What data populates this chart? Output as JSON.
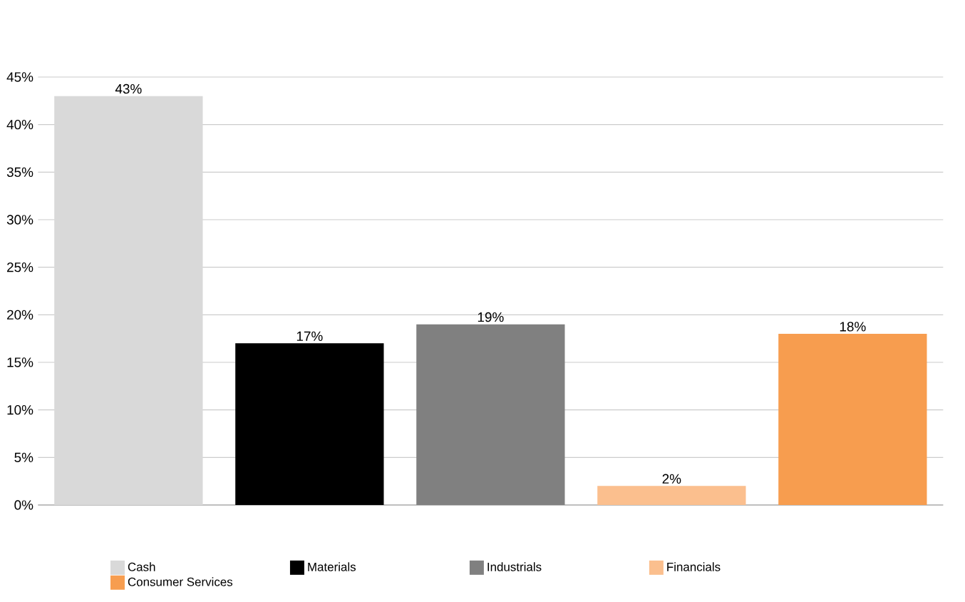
{
  "chart_data": {
    "type": "bar",
    "categories": [
      null
    ],
    "series": [
      {
        "name": "Cash",
        "color": "#d9d9d9",
        "values": [
          43
        ],
        "value_labels": [
          "43%"
        ]
      },
      {
        "name": "Materials",
        "color": "#000000",
        "values": [
          17
        ],
        "value_labels": [
          "17%"
        ]
      },
      {
        "name": "Industrials",
        "color": "#808080",
        "values": [
          19
        ],
        "value_labels": [
          "19%"
        ]
      },
      {
        "name": "Financials",
        "color": "#fbbf8e",
        "values": [
          2
        ],
        "value_labels": [
          "2%"
        ]
      },
      {
        "name": "Consumer Services",
        "color": "#f79d4f",
        "values": [
          18
        ],
        "value_labels": [
          "18%"
        ]
      }
    ],
    "ylim": [
      0,
      45
    ],
    "yticks": [
      {
        "value": 0,
        "label": "0%"
      },
      {
        "value": 5,
        "label": "5%"
      },
      {
        "value": 10,
        "label": "10%"
      },
      {
        "value": 15,
        "label": "15%"
      },
      {
        "value": 20,
        "label": "20%"
      },
      {
        "value": 25,
        "label": "25%"
      },
      {
        "value": 30,
        "label": "30%"
      },
      {
        "value": 35,
        "label": "35%"
      },
      {
        "value": 40,
        "label": "40%"
      },
      {
        "value": 45,
        "label": "45%"
      }
    ],
    "grid": "y",
    "legend": "bottom",
    "tick_labels": "y"
  }
}
